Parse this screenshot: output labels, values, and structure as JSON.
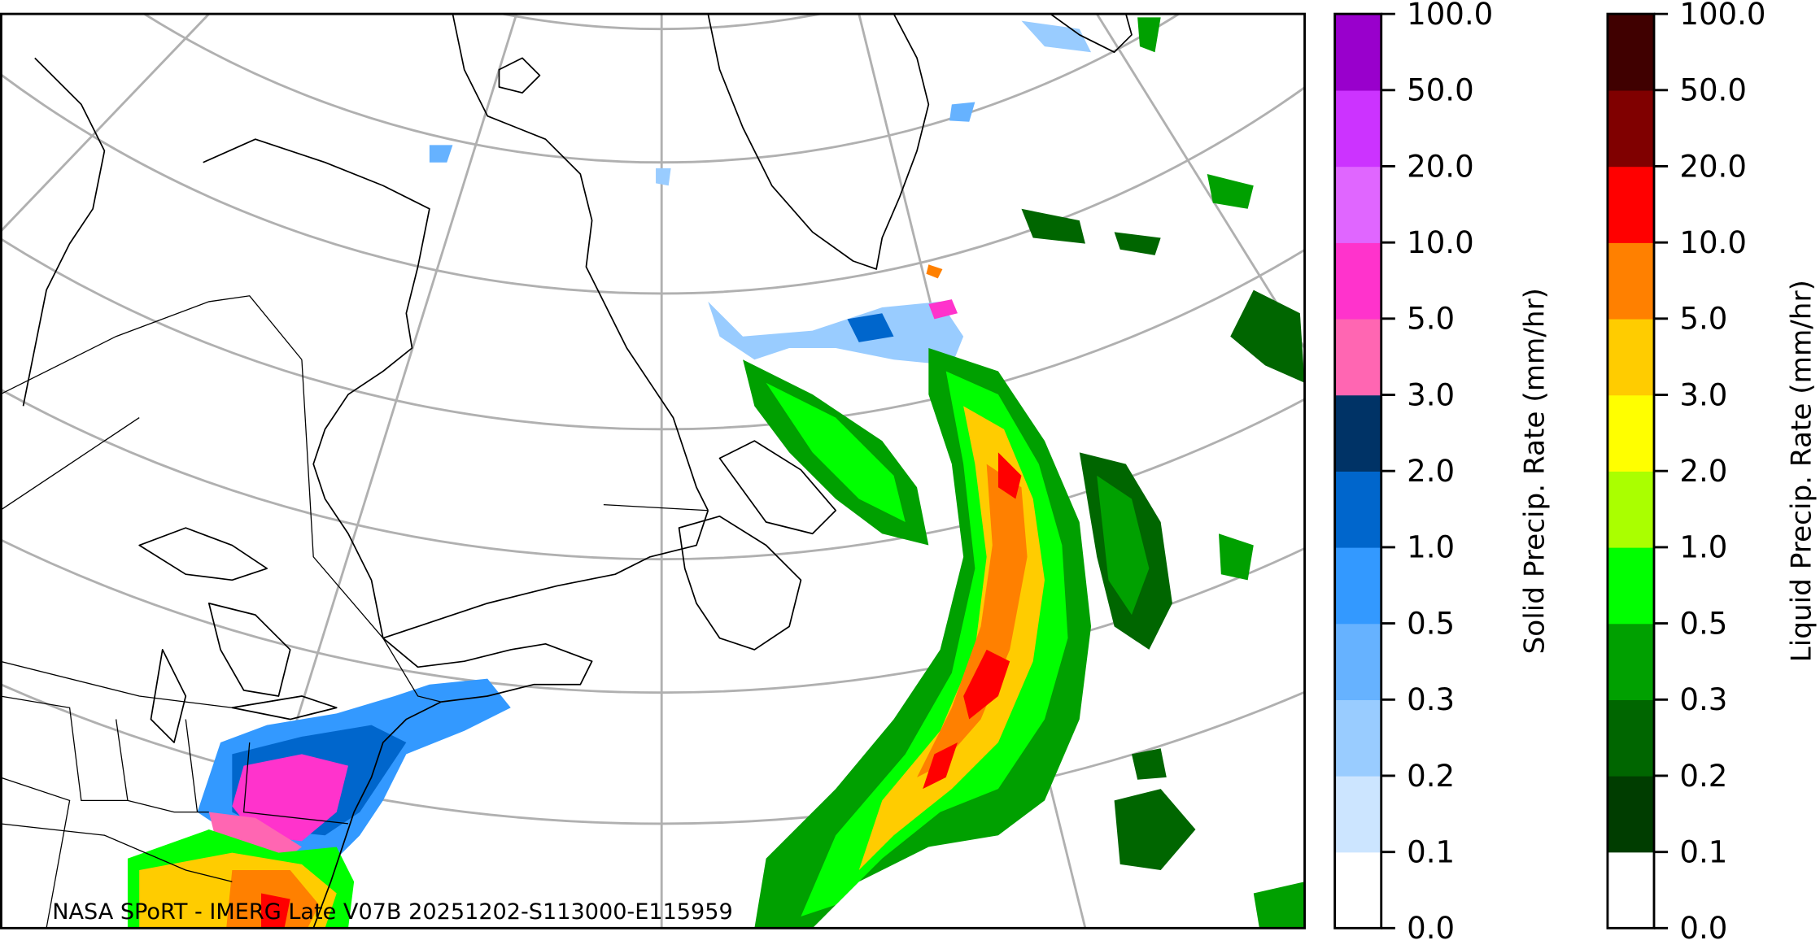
{
  "map": {
    "caption": "NASA SPoRT - IMERG Late V07B 20251202-S113000-E115959",
    "projection": "lambert-conformal",
    "region": "northeastern North America and northwest Atlantic",
    "graticule_color": "#b0b0b0",
    "coastline_color": "#000000"
  },
  "colorbars": [
    {
      "id": "solid",
      "label": "Solid Precip. Rate (mm/hr)",
      "ticks": [
        "0.0",
        "0.1",
        "0.2",
        "0.3",
        "0.5",
        "1.0",
        "2.0",
        "3.0",
        "5.0",
        "10.0",
        "20.0",
        "50.0",
        "100.0"
      ],
      "colors": [
        "#ffffff",
        "#cce5ff",
        "#99ccff",
        "#66b2ff",
        "#3399ff",
        "#0066cc",
        "#003366",
        "#ff66b2",
        "#ff33cc",
        "#e066ff",
        "#cc33ff",
        "#9900cc"
      ]
    },
    {
      "id": "liquid",
      "label": "Liquid Precip. Rate (mm/hr)",
      "ticks": [
        "0.0",
        "0.1",
        "0.2",
        "0.3",
        "0.5",
        "1.0",
        "2.0",
        "3.0",
        "5.0",
        "10.0",
        "20.0",
        "50.0",
        "100.0"
      ],
      "colors": [
        "#ffffff",
        "#003d00",
        "#006600",
        "#00a000",
        "#00ff00",
        "#aaff00",
        "#ffff00",
        "#ffcc00",
        "#ff8000",
        "#ff0000",
        "#800000",
        "#400000"
      ]
    }
  ]
}
